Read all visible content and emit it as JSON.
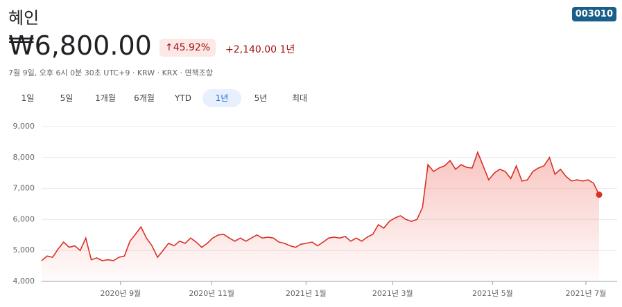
{
  "header": {
    "title": "혜인",
    "ticker": "003010",
    "price": "₩6,800.00",
    "change_pct": "↑45.92%",
    "change_abs": "+2,140.00 1년",
    "info": "7월 9일, 오후 6시 0분 30초 UTC+9 · KRW · KRX · 면책조항"
  },
  "tabs": {
    "items": [
      "1일",
      "5일",
      "1개월",
      "6개월",
      "YTD",
      "1년",
      "5년",
      "최대"
    ],
    "selected": 5
  },
  "chart_data": {
    "type": "area",
    "color": "#d93025",
    "values": [
      4670,
      4820,
      4780,
      5050,
      5270,
      5100,
      5150,
      5000,
      5400,
      4700,
      4760,
      4670,
      4700,
      4670,
      4780,
      4820,
      5300,
      5520,
      5760,
      5400,
      5150,
      4780,
      5000,
      5230,
      5150,
      5300,
      5230,
      5400,
      5270,
      5100,
      5230,
      5400,
      5500,
      5520,
      5400,
      5300,
      5400,
      5300,
      5400,
      5500,
      5400,
      5430,
      5400,
      5270,
      5230,
      5150,
      5100,
      5200,
      5230,
      5270,
      5150,
      5270,
      5400,
      5430,
      5400,
      5450,
      5300,
      5400,
      5300,
      5430,
      5520,
      5830,
      5720,
      5940,
      6050,
      6120,
      6000,
      5940,
      6000,
      6390,
      7770,
      7550,
      7660,
      7730,
      7900,
      7620,
      7770,
      7680,
      7660,
      8170,
      7730,
      7280,
      7500,
      7620,
      7550,
      7320,
      7730,
      7240,
      7280,
      7550,
      7660,
      7730,
      8000,
      7460,
      7620,
      7390,
      7240,
      7280,
      7240,
      7280,
      7170,
      6800
    ],
    "xlim": [
      0,
      101
    ],
    "xticks": [
      {
        "value": 14.3,
        "label": "2020년 9월"
      },
      {
        "value": 30.8,
        "label": "2020년 11월"
      },
      {
        "value": 47.9,
        "label": "2021년 1월"
      },
      {
        "value": 63.6,
        "label": "2021년 3월"
      },
      {
        "value": 81.7,
        "label": "2021년 5월"
      },
      {
        "value": 98.6,
        "label": "2021년 7월"
      }
    ],
    "ylim": [
      4000,
      9000
    ],
    "yticks": [
      {
        "value": 4000,
        "label": "4,000"
      },
      {
        "value": 5000,
        "label": "5,000"
      },
      {
        "value": 6000,
        "label": "6,000"
      },
      {
        "value": 7000,
        "label": "7,000"
      },
      {
        "value": 8000,
        "label": "8,000"
      },
      {
        "value": 9000,
        "label": "9,000"
      }
    ],
    "grid": true
  }
}
